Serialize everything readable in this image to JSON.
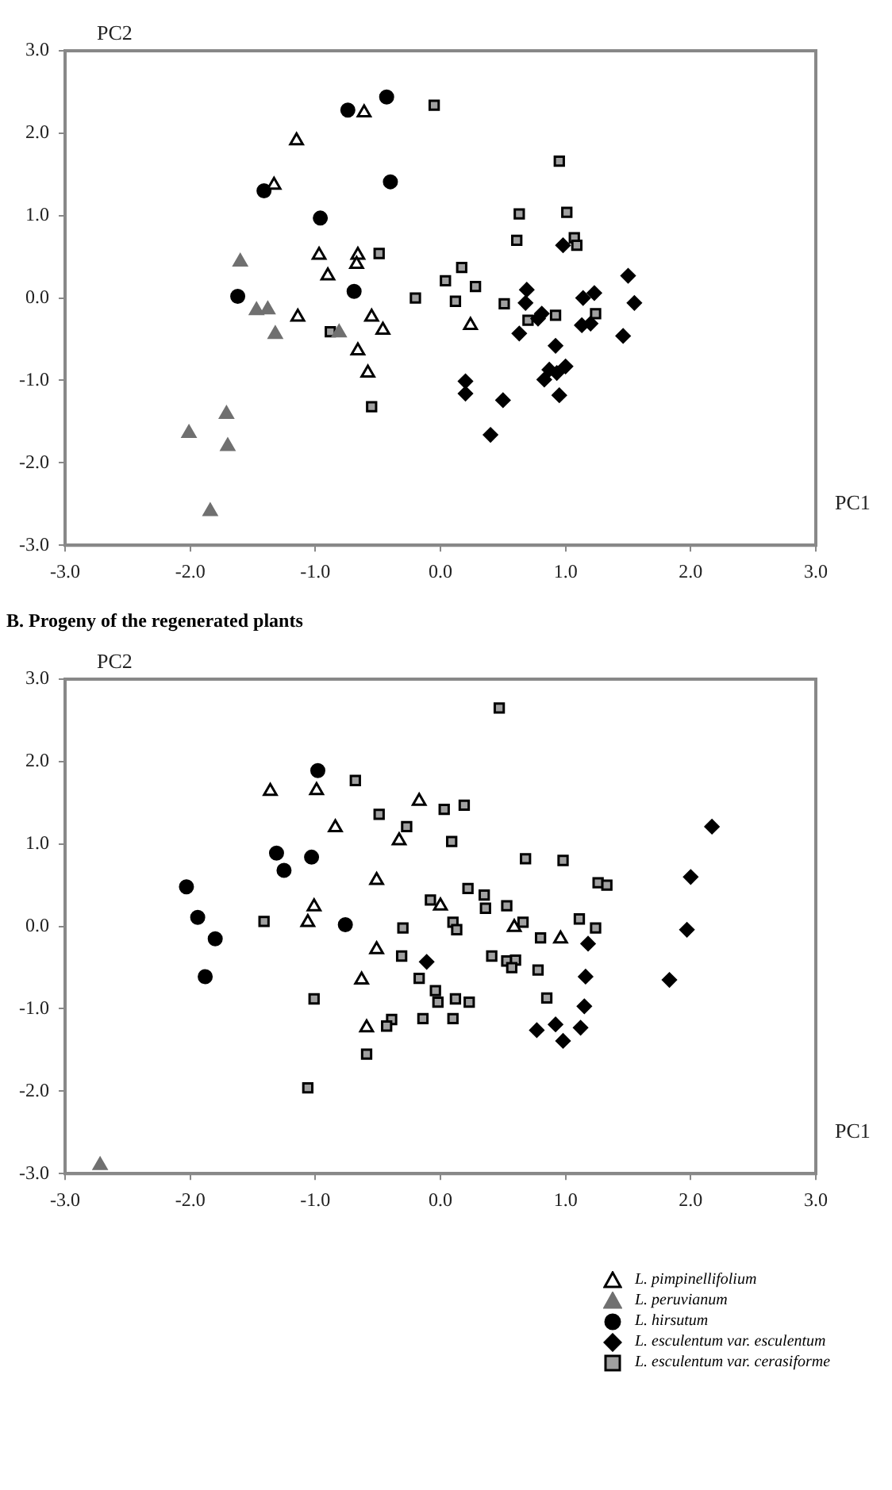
{
  "chart_data": [
    {
      "type": "scatter",
      "xlabel": "PC1",
      "ylabel": "PC2",
      "xlim": [
        -3,
        3
      ],
      "ylim": [
        -3,
        3
      ],
      "grid": false,
      "legend": false,
      "xticks": [
        {
          "value": -3,
          "label": "-3.0"
        },
        {
          "value": -2,
          "label": "-2.0"
        },
        {
          "value": -1,
          "label": "-1.0"
        },
        {
          "value": 0,
          "label": "0.0"
        },
        {
          "value": 1,
          "label": "1.0"
        },
        {
          "value": 2,
          "label": "2.0"
        },
        {
          "value": 3,
          "label": "3.0"
        }
      ],
      "yticks": [
        {
          "value": -3,
          "label": "-3.0"
        },
        {
          "value": -2,
          "label": "-2.0"
        },
        {
          "value": -1,
          "label": "-1.0"
        },
        {
          "value": 0,
          "label": "0.0"
        },
        {
          "value": 1,
          "label": "1.0"
        },
        {
          "value": 2,
          "label": "2.0"
        },
        {
          "value": 3,
          "label": "3.0"
        }
      ],
      "series": [
        {
          "color": "#ffffff",
          "marker": "triangle",
          "x": [
            -1.15,
            -0.61,
            -1.33,
            -0.97,
            -0.66,
            -0.67,
            -0.9,
            -1.14,
            -0.55,
            -0.46,
            -0.66,
            -0.58,
            0.24
          ],
          "values": [
            1.91,
            2.25,
            1.37,
            0.52,
            0.52,
            0.41,
            0.27,
            -0.23,
            -0.23,
            -0.39,
            -0.64,
            -0.91,
            -0.33
          ]
        },
        {
          "color": "#707070",
          "marker": "triangle",
          "x": [
            -1.6,
            -1.47,
            -1.38,
            -1.32,
            -0.81,
            -1.71,
            -2.01,
            -1.7,
            -1.84
          ],
          "values": [
            0.44,
            -0.15,
            -0.14,
            -0.44,
            -0.42,
            -1.41,
            -1.64,
            -1.8,
            -2.59
          ]
        },
        {
          "color": "#000000",
          "marker": "circle",
          "x": [
            -0.74,
            -0.43,
            -1.41,
            -0.4,
            -0.96,
            -1.62,
            -0.69
          ],
          "values": [
            2.28,
            2.44,
            1.3,
            1.41,
            0.97,
            0.02,
            0.08
          ]
        },
        {
          "color": "#000000",
          "marker": "diamond",
          "x": [
            0.98,
            1.5,
            1.55,
            0.69,
            0.68,
            1.14,
            1.23,
            0.81,
            0.78,
            0.63,
            1.13,
            1.2,
            1.46,
            0.92,
            1.0,
            0.87,
            0.93,
            0.83,
            0.95,
            0.2,
            0.2,
            0.5,
            0.4
          ],
          "values": [
            0.64,
            0.27,
            -0.06,
            0.1,
            -0.06,
            0.0,
            0.06,
            -0.19,
            -0.25,
            -0.43,
            -0.33,
            -0.31,
            -0.46,
            -0.58,
            -0.83,
            -0.87,
            -0.91,
            -0.99,
            -1.18,
            -1.01,
            -1.16,
            -1.24,
            -1.66
          ]
        },
        {
          "color": "#a0a0a0",
          "marker": "square",
          "x": [
            -0.05,
            -0.49,
            0.17,
            0.04,
            -0.2,
            0.12,
            -0.88,
            -0.55,
            0.28,
            0.51,
            0.95,
            0.63,
            1.01,
            0.61,
            1.07,
            1.09,
            0.7,
            0.92,
            1.24
          ],
          "values": [
            2.34,
            0.54,
            0.37,
            0.21,
            0.0,
            -0.04,
            -0.41,
            -1.32,
            0.14,
            -0.07,
            1.66,
            1.02,
            1.04,
            0.7,
            0.73,
            0.64,
            -0.27,
            -0.21,
            -0.19
          ]
        }
      ]
    },
    {
      "type": "scatter",
      "title": "B. Progeny of the regenerated plants",
      "xlabel": "PC1",
      "ylabel": "PC2",
      "xlim": [
        -3,
        3
      ],
      "ylim": [
        -3,
        3
      ],
      "grid": false,
      "legend": "bottom right",
      "xticks": [
        {
          "value": -3,
          "label": "-3.0"
        },
        {
          "value": -2,
          "label": "-2.0"
        },
        {
          "value": -1,
          "label": "-1.0"
        },
        {
          "value": 0,
          "label": "0.0"
        },
        {
          "value": 1,
          "label": "1.0"
        },
        {
          "value": 2,
          "label": "2.0"
        },
        {
          "value": 3,
          "label": "3.0"
        }
      ],
      "yticks": [
        {
          "value": -3,
          "label": "-3.0"
        },
        {
          "value": -2,
          "label": "-2.0"
        },
        {
          "value": -1,
          "label": "-1.0"
        },
        {
          "value": 0,
          "label": "0.0"
        },
        {
          "value": 1,
          "label": "1.0"
        },
        {
          "value": 2,
          "label": "2.0"
        },
        {
          "value": 3,
          "label": "3.0"
        }
      ],
      "series": [
        {
          "name": "L. pimpinellifolium",
          "color": "#ffffff",
          "marker": "triangle",
          "x": [
            -1.36,
            -0.99,
            -0.84,
            -0.17,
            -0.33,
            -0.51,
            -1.01,
            -1.06,
            0.0,
            -0.51,
            -0.63,
            -0.59,
            0.59,
            0.96
          ],
          "values": [
            1.64,
            1.65,
            1.2,
            1.52,
            1.04,
            0.56,
            0.24,
            0.05,
            0.25,
            -0.28,
            -0.65,
            -1.23,
            -0.01,
            -0.15
          ]
        },
        {
          "name": "L. peruvianum",
          "color": "#707070",
          "marker": "triangle",
          "x": [
            -2.72
          ],
          "values": [
            -2.9
          ]
        },
        {
          "name": "L. hirsutum",
          "color": "#000000",
          "marker": "circle",
          "x": [
            -0.98,
            -1.31,
            -1.03,
            -1.25,
            -2.03,
            -1.94,
            -1.8,
            -1.88,
            -0.76
          ],
          "values": [
            1.89,
            0.89,
            0.84,
            0.68,
            0.48,
            0.11,
            -0.15,
            -0.61,
            0.02
          ]
        },
        {
          "name": "L. esculentum var. esculentum",
          "color": "#000000",
          "marker": "diamond",
          "x": [
            -0.11,
            2.17,
            2.0,
            1.97,
            1.83,
            1.18,
            1.16,
            1.15,
            1.12,
            0.92,
            0.77,
            0.98
          ],
          "values": [
            -0.43,
            1.21,
            0.6,
            -0.04,
            -0.65,
            -0.21,
            -0.61,
            -0.97,
            -1.23,
            -1.19,
            -1.26,
            -1.39
          ]
        },
        {
          "name": "L. esculentum var. cerasiforme",
          "color": "#a0a0a0",
          "marker": "square",
          "x": [
            -0.68,
            -0.49,
            -0.27,
            0.03,
            0.19,
            0.09,
            -1.41,
            -0.08,
            0.1,
            0.13,
            -0.3,
            0.22,
            -0.31,
            -0.17,
            -0.04,
            -0.02,
            0.12,
            0.23,
            -1.01,
            -0.39,
            -0.43,
            -0.14,
            0.1,
            -0.59,
            -1.06,
            0.47,
            0.68,
            0.98,
            1.26,
            1.33,
            0.35,
            0.36,
            0.53,
            0.66,
            1.11,
            1.24,
            0.8,
            0.41,
            0.53,
            0.6,
            0.57,
            0.78,
            0.85
          ],
          "values": [
            1.77,
            1.36,
            1.21,
            1.42,
            1.47,
            1.03,
            0.06,
            0.32,
            0.05,
            -0.04,
            -0.02,
            0.46,
            -0.36,
            -0.63,
            -0.78,
            -0.92,
            -0.88,
            -0.92,
            -0.88,
            -1.13,
            -1.21,
            -1.12,
            -1.12,
            -1.55,
            -1.96,
            2.65,
            0.82,
            0.8,
            0.53,
            0.5,
            0.38,
            0.22,
            0.25,
            0.05,
            0.09,
            -0.02,
            -0.14,
            -0.36,
            -0.42,
            -0.41,
            -0.5,
            -0.53,
            -0.87
          ]
        }
      ]
    }
  ]
}
